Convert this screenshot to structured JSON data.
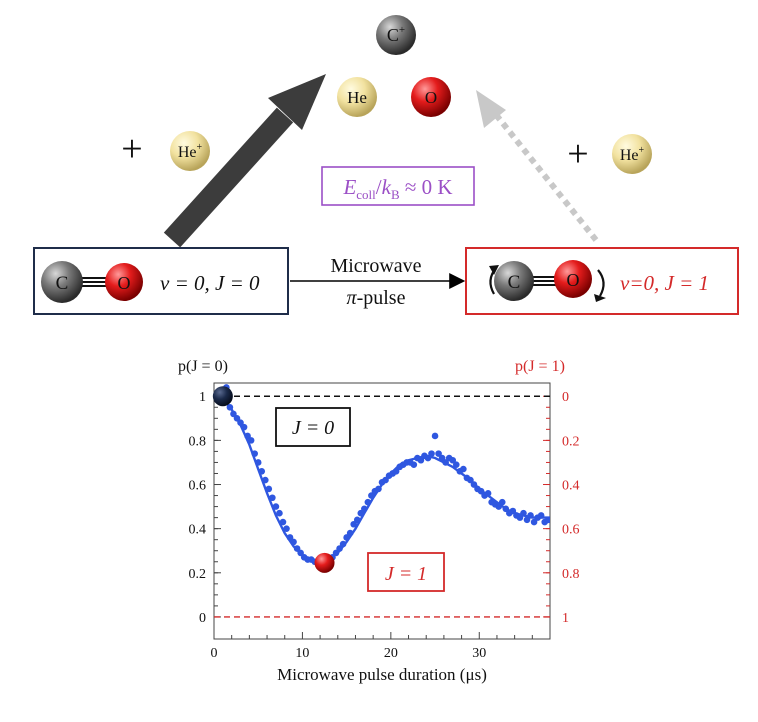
{
  "scheme": {
    "cplus": "C",
    "cplus_sup": "+",
    "he": "He",
    "o": "O",
    "heplus": "He",
    "heplus_sup": "+",
    "plus_sign": "+",
    "energy": {
      "E": "E",
      "coll": "coll",
      "slash": "/",
      "k": "k",
      "B": "B",
      "rest": " ≈ 0 K"
    },
    "left_state": {
      "c": "C",
      "o": "O",
      "label": "v = 0, J = 0"
    },
    "right_state": {
      "c": "C",
      "o": "O",
      "label": "v=0, J = 1"
    },
    "transition": {
      "line1": "Microwave",
      "pi": "π",
      "pulse": "-pulse"
    }
  },
  "colors": {
    "dark_arrow": "#3c3c3c",
    "light_arrow": "#c8c8c8",
    "left_box": "#1f2d4a",
    "right_box": "#d42a2a",
    "energy_box": "#9b4fc6",
    "data_blue": "#2f57e0",
    "red_axis": "#d42a2a"
  },
  "chart_data": {
    "type": "scatter",
    "xlabel": "Microwave pulse duration (μs)",
    "ylabel_left": "p(J = 0)",
    "ylabel_right": "p(J = 1)",
    "xlim": [
      0,
      38
    ],
    "ylim": [
      -0.1,
      1.06
    ],
    "x_ticks": [
      0,
      10,
      20,
      30
    ],
    "y_ticks_left": [
      "0",
      "0.2",
      "0.4",
      "0.6",
      "0.8",
      "1"
    ],
    "y_ticks_right": [
      "1",
      "0.8",
      "0.6",
      "0.4",
      "0.2",
      "0"
    ],
    "legend_j0": "J = 0",
    "legend_j1": "J = 1",
    "dashed_lines": [
      1,
      0
    ],
    "marker_j0": {
      "x": 1.0,
      "y": 1.0
    },
    "marker_j1": {
      "x": 12.5,
      "y": 0.245
    },
    "fit_curve": {
      "x": [
        0,
        1,
        2,
        3,
        4,
        5,
        6,
        7,
        8,
        9,
        10,
        11,
        12,
        13,
        14,
        15,
        16,
        17,
        18,
        19,
        20,
        21,
        22,
        23,
        24,
        25,
        26,
        27,
        28,
        29,
        30,
        31,
        32,
        33,
        34,
        35,
        36,
        37,
        38
      ],
      "y": [
        1.02,
        0.99,
        0.94,
        0.87,
        0.78,
        0.67,
        0.56,
        0.46,
        0.38,
        0.32,
        0.28,
        0.26,
        0.25,
        0.26,
        0.29,
        0.34,
        0.4,
        0.47,
        0.54,
        0.6,
        0.65,
        0.69,
        0.71,
        0.72,
        0.73,
        0.72,
        0.7,
        0.68,
        0.65,
        0.62,
        0.58,
        0.55,
        0.52,
        0.49,
        0.47,
        0.46,
        0.45,
        0.45,
        0.45
      ]
    },
    "points": {
      "x": [
        0.5,
        1.0,
        1.4,
        1.8,
        2.2,
        2.6,
        3.0,
        3.4,
        3.8,
        4.2,
        4.6,
        5.0,
        5.4,
        5.8,
        6.2,
        6.6,
        7.0,
        7.4,
        7.8,
        8.2,
        8.6,
        9.0,
        9.4,
        9.8,
        10.2,
        10.6,
        11.0,
        11.4,
        11.8,
        12.2,
        12.6,
        13.0,
        13.4,
        13.8,
        14.2,
        14.6,
        15.0,
        15.4,
        15.8,
        16.2,
        16.6,
        17.0,
        17.4,
        17.8,
        18.2,
        18.6,
        19.0,
        19.4,
        19.8,
        20.2,
        20.6,
        21.0,
        21.4,
        21.8,
        22.2,
        22.6,
        23.0,
        23.4,
        23.8,
        24.2,
        24.6,
        25.0,
        25.4,
        25.8,
        26.2,
        26.6,
        27.0,
        27.4,
        27.8,
        28.2,
        28.6,
        29.0,
        29.4,
        29.8,
        30.2,
        30.6,
        31.0,
        31.4,
        31.8,
        32.2,
        32.6,
        33.0,
        33.4,
        33.8,
        34.2,
        34.6,
        35.0,
        35.4,
        35.8,
        36.2,
        36.6,
        37.0,
        37.4,
        37.8
      ],
      "y": [
        0.98,
        1.02,
        1.04,
        0.95,
        0.92,
        0.9,
        0.88,
        0.86,
        0.82,
        0.8,
        0.74,
        0.7,
        0.66,
        0.62,
        0.58,
        0.54,
        0.5,
        0.47,
        0.43,
        0.4,
        0.36,
        0.34,
        0.31,
        0.29,
        0.27,
        0.26,
        0.26,
        0.25,
        0.24,
        0.25,
        0.24,
        0.26,
        0.27,
        0.29,
        0.31,
        0.33,
        0.36,
        0.38,
        0.42,
        0.44,
        0.47,
        0.49,
        0.52,
        0.55,
        0.57,
        0.58,
        0.61,
        0.62,
        0.64,
        0.65,
        0.66,
        0.68,
        0.69,
        0.7,
        0.7,
        0.69,
        0.72,
        0.71,
        0.73,
        0.72,
        0.74,
        0.82,
        0.74,
        0.72,
        0.7,
        0.72,
        0.71,
        0.69,
        0.66,
        0.67,
        0.63,
        0.62,
        0.6,
        0.58,
        0.57,
        0.55,
        0.56,
        0.52,
        0.51,
        0.5,
        0.52,
        0.49,
        0.47,
        0.48,
        0.46,
        0.45,
        0.47,
        0.44,
        0.46,
        0.43,
        0.45,
        0.46,
        0.43,
        0.44
      ]
    }
  }
}
